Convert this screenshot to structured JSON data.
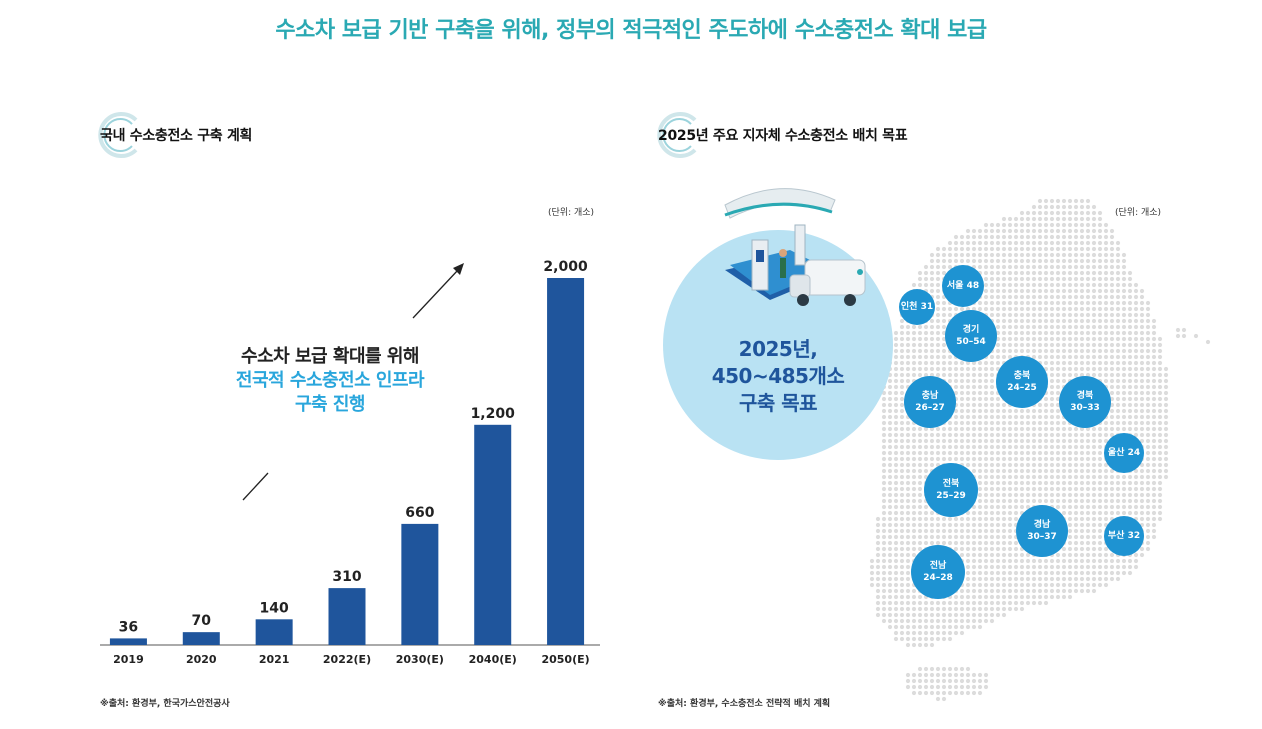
{
  "colors": {
    "accent_teal": "#2aa9b3",
    "accent_blue": "#29a6dc",
    "bar_blue": "#1f559c",
    "map_dot": "#dcdcdc",
    "city_blue": "#1e93d2",
    "bubble": "#b9e2f3",
    "big_text": "#1f559c"
  },
  "header": {
    "title": "수소차 보급 기반 구축을 위해, 정부의 적극적인 주도하에 수소충전소 확대 보급"
  },
  "left_panel": {
    "title": "국내 수소충전소 구축 계획",
    "unit": "(단위: 개소)",
    "message": {
      "line1": "수소차 보급 확대를 위해",
      "line2": "전국적 수소충전소 인프라",
      "line3": "구축 진행"
    },
    "source": "※출처: 환경부, 한국가스안전공사"
  },
  "chart_data": {
    "type": "bar",
    "title": "국내 수소충전소 구축 계획",
    "categories": [
      "2019",
      "2020",
      "2021",
      "2022(E)",
      "2030(E)",
      "2040(E)",
      "2050(E)"
    ],
    "values": [
      36,
      70,
      140,
      310,
      660,
      1200,
      2000
    ],
    "value_labels": [
      "36",
      "70",
      "140",
      "310",
      "660",
      "1,200",
      "2,000"
    ],
    "xlabel": "",
    "ylabel": "(단위: 개소)",
    "ylim": [
      0,
      2000
    ],
    "grid": false,
    "legend": "none"
  },
  "right_panel": {
    "title": "2025년 주요 지자체 수소충전소 배치 목표",
    "unit": "(단위: 개소)",
    "target": {
      "line1": "2025년,",
      "line2": "450~485개소",
      "line3": "구축 목표"
    },
    "cities": [
      {
        "name": "서울",
        "value": "48",
        "label": "서울 48"
      },
      {
        "name": "인천",
        "value": "31",
        "label": "인천 31"
      },
      {
        "name": "경기",
        "value": "50–54",
        "label": "경기",
        "sub": "50–54"
      },
      {
        "name": "충북",
        "value": "24–25",
        "label": "충북",
        "sub": "24–25"
      },
      {
        "name": "충남",
        "value": "26–27",
        "label": "충남",
        "sub": "26–27"
      },
      {
        "name": "경북",
        "value": "30–33",
        "label": "경북",
        "sub": "30–33"
      },
      {
        "name": "울산",
        "value": "24",
        "label": "울산 24"
      },
      {
        "name": "전북",
        "value": "25–29",
        "label": "전북",
        "sub": "25–29"
      },
      {
        "name": "경남",
        "value": "30–37",
        "label": "경남",
        "sub": "30–37"
      },
      {
        "name": "부산",
        "value": "32",
        "label": "부산 32"
      },
      {
        "name": "전남",
        "value": "24–28",
        "label": "전남",
        "sub": "24–28"
      }
    ],
    "source": "※출처: 환경부, 수소충전소 전략적 배치 계획"
  }
}
